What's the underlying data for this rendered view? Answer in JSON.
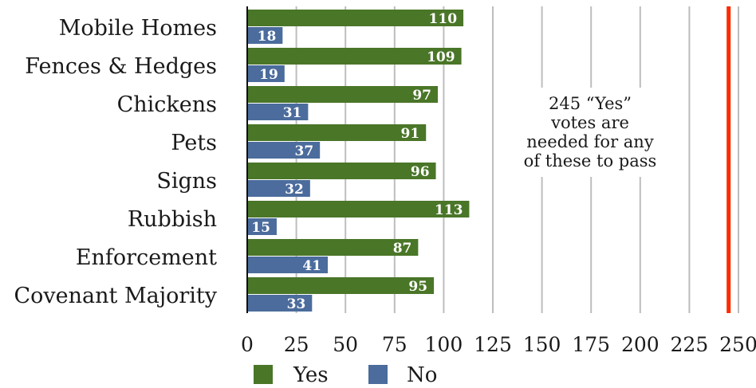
{
  "chart_data": {
    "type": "bar",
    "orientation": "horizontal",
    "categories": [
      "Mobile Homes",
      "Fences & Hedges",
      "Chickens",
      "Pets",
      "Signs",
      "Rubbish",
      "Enforcement",
      "Covenant Majority"
    ],
    "series": [
      {
        "name": "Yes",
        "color": "#4a7628",
        "values": [
          110,
          109,
          97,
          91,
          96,
          113,
          87,
          95
        ]
      },
      {
        "name": "No",
        "color": "#4b6c9c",
        "values": [
          18,
          19,
          31,
          37,
          32,
          15,
          41,
          33
        ]
      }
    ],
    "xlim": [
      0,
      250
    ],
    "x_ticks": [
      "0",
      "25",
      "50",
      "75",
      "100",
      "125",
      "150",
      "175",
      "200",
      "225",
      "250"
    ],
    "threshold": {
      "value": 245,
      "color": "#ff2a00"
    },
    "annotation": [
      "245 “Yes”",
      "votes are",
      "needed for any",
      "of these to pass"
    ],
    "grid": "vertical",
    "legend": "bottom-center"
  }
}
